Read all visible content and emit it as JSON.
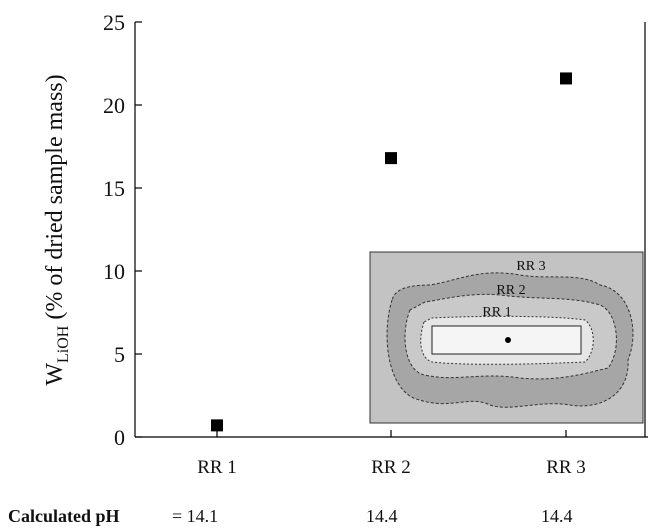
{
  "chart_data": {
    "type": "scatter",
    "ylabel": {
      "main": "W",
      "sub": "LiOH",
      "rest": "(% of dried sample mass)"
    },
    "categories": [
      "RR 1",
      "RR 2",
      "RR 3"
    ],
    "values": [
      0.7,
      16.8,
      21.6
    ],
    "color": "#000000",
    "ylim": [
      0,
      25
    ],
    "yticks": [
      0,
      5,
      10,
      15,
      20,
      25
    ],
    "ph": {
      "label": "Calculated pH",
      "values": [
        "= 14.1",
        "14.4",
        "14.4"
      ]
    },
    "inset": {
      "labels": [
        "RR 3",
        "RR 2",
        "RR 1"
      ]
    }
  }
}
